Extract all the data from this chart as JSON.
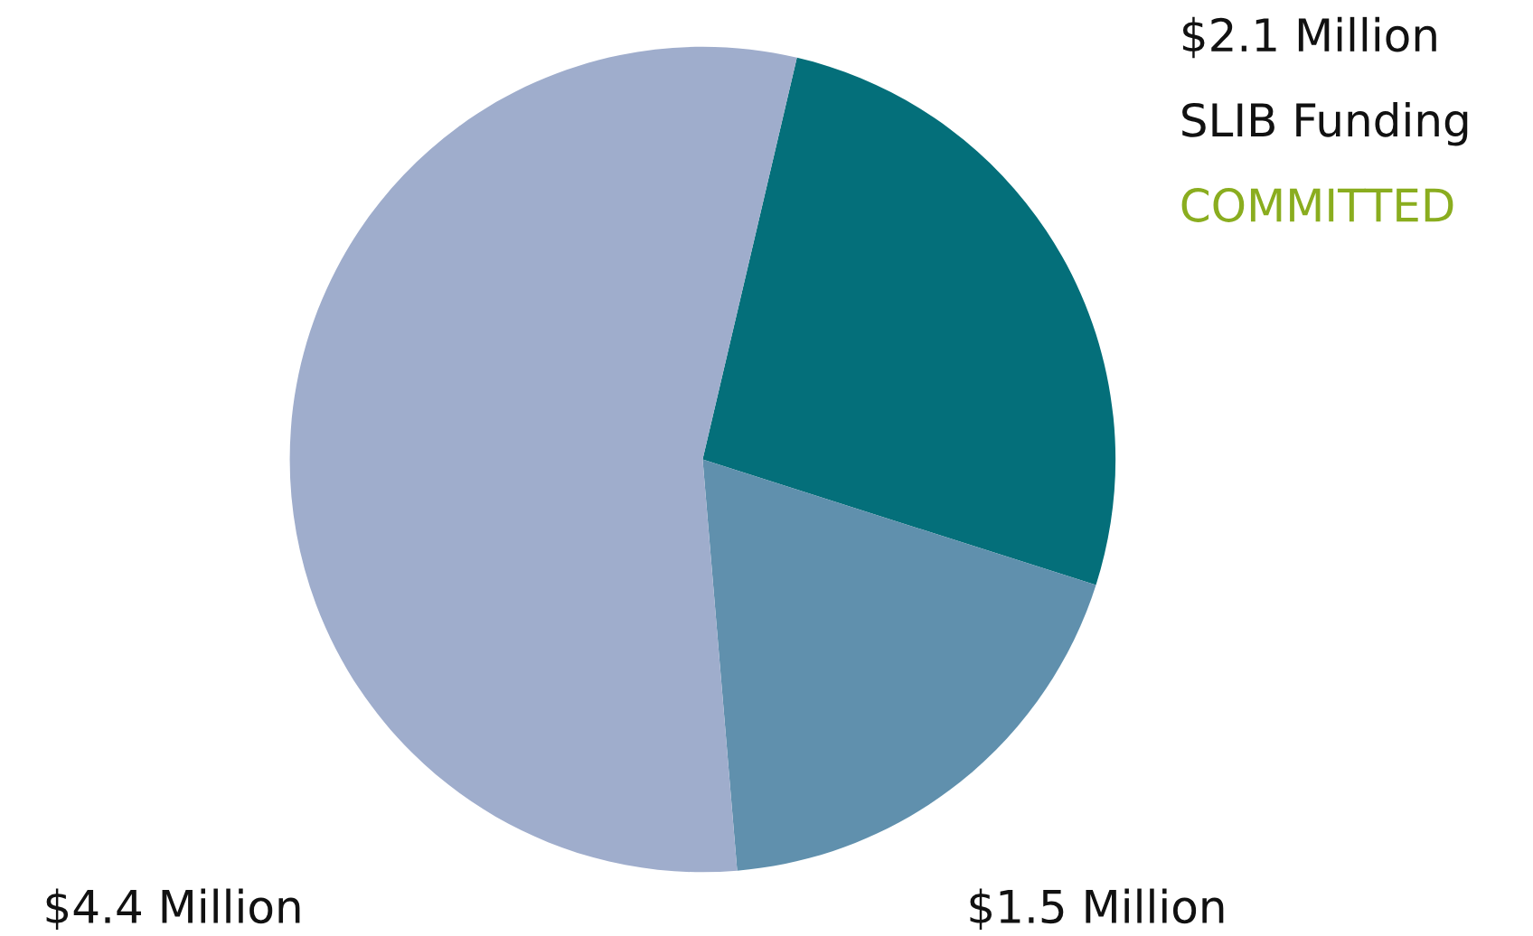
{
  "chart_data": {
    "type": "pie",
    "categories": [
      "$2.1 Million",
      "$1.5 Million",
      "$4.4 Million"
    ],
    "values": [
      2.1,
      1.5,
      4.4
    ],
    "colors": [
      "#046f7a",
      "#6090ad",
      "#9fadcc"
    ],
    "annotations": [
      "SLIB Funding",
      "COMMITTED"
    ],
    "legend": false
  }
}
